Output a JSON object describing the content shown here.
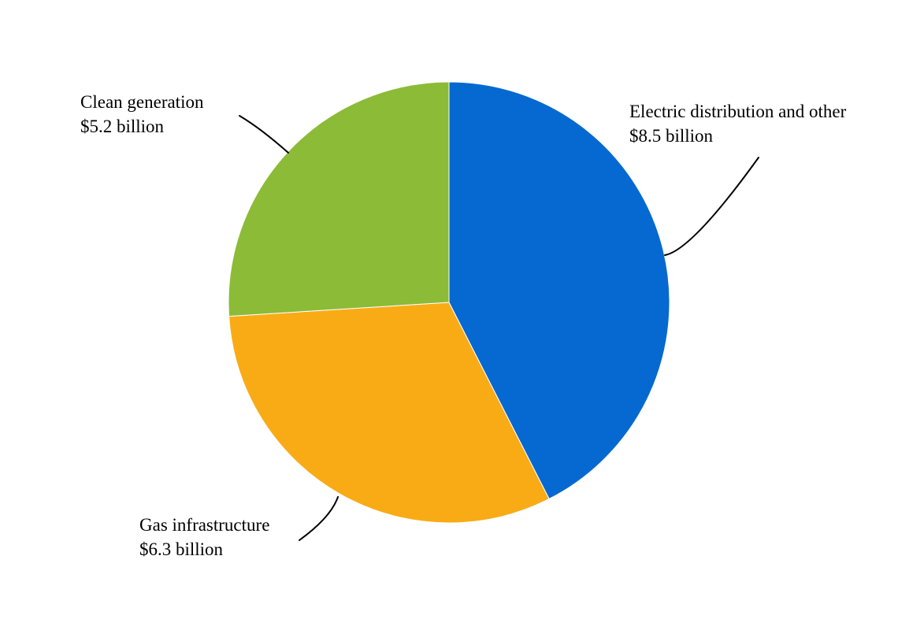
{
  "chart_data": {
    "type": "pie",
    "title": "",
    "legend_position": "none",
    "direction": "clockwise",
    "start_angle_deg": 0,
    "total": 20.0,
    "text_color": "#000000",
    "leader_line_color": "#000000",
    "slice_separator_color": "#ffffff",
    "segments": [
      {
        "label": "Electric distribution and other",
        "value": 8.5,
        "value_label": "$8.5 billion",
        "percent": 42.5,
        "color": "#0669D1"
      },
      {
        "label": "Gas infrastructure",
        "value": 6.3,
        "value_label": "$6.3 billion",
        "percent": 31.5,
        "color": "#F9AB16"
      },
      {
        "label": "Clean generation",
        "value": 5.2,
        "value_label": "$5.2 billion",
        "percent": 26.0,
        "color": "#8CBB38"
      }
    ]
  }
}
